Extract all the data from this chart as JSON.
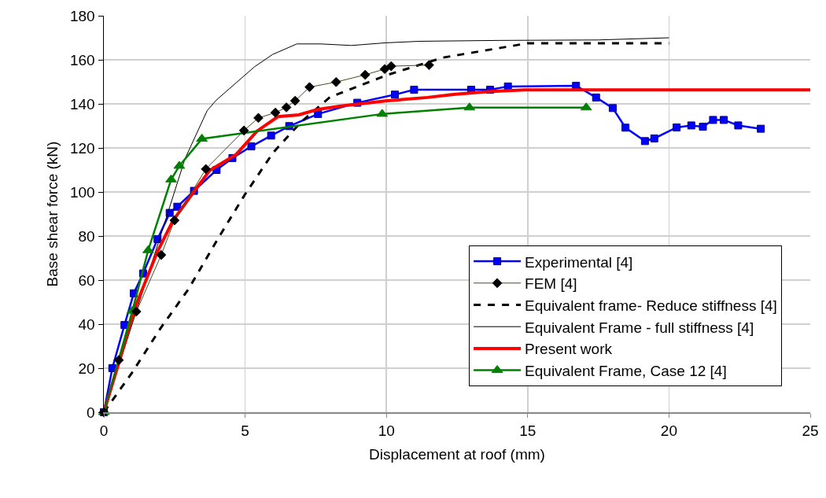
{
  "chart_data": {
    "type": "line",
    "xlabel": "Displacement at roof (mm)",
    "ylabel": "Base shear force (kN)",
    "xlim": [
      0,
      25
    ],
    "xticks": [
      0,
      5,
      10,
      15,
      20,
      25
    ],
    "ylim": [
      0,
      180
    ],
    "yticks": [
      0,
      20,
      40,
      60,
      80,
      100,
      120,
      140,
      160,
      180
    ],
    "grid": true,
    "legend": "bottom right",
    "series": [
      {
        "name": "Experimental [4]",
        "color": "#0000ff",
        "marker": "square",
        "line_style": "solid",
        "x": [
          0,
          0.3,
          0.73,
          1.06,
          1.39,
          1.9,
          2.33,
          2.6,
          3.19,
          3.99,
          4.55,
          5.22,
          5.92,
          6.56,
          7.58,
          8.97,
          10.3,
          10.98,
          13.0,
          13.67,
          14.3,
          16.71,
          17.42,
          18.01,
          18.46,
          19.15,
          19.48,
          20.27,
          20.79,
          21.2,
          21.56,
          21.94,
          22.45,
          23.25
        ],
        "values": [
          0,
          20,
          39.6,
          54,
          63,
          78.6,
          90.5,
          93.3,
          100.5,
          110,
          115.4,
          120.7,
          125.6,
          129.9,
          135.4,
          140.5,
          144.2,
          146.4,
          146.4,
          146.4,
          147.9,
          148.2,
          142.9,
          138.1,
          129.2,
          123.1,
          124.3,
          129.3,
          130.2,
          129.6,
          132.7,
          132.7,
          130.2,
          128.7
        ]
      },
      {
        "name": "FEM [4]",
        "color": "#000000",
        "marker": "diamond",
        "line_style": "solid",
        "x": [
          0,
          0.53,
          1.15,
          2.03,
          2.5,
          3.61,
          4.96,
          5.47,
          6.07,
          6.46,
          6.77,
          7.28,
          8.22,
          9.25,
          9.94,
          10.17,
          11.51
        ],
        "values": [
          0,
          23.7,
          45.7,
          71.4,
          87.1,
          110.4,
          127.9,
          133.6,
          136,
          138.4,
          141.4,
          147.6,
          149.9,
          153.2,
          155.8,
          157.1,
          157.6
        ]
      },
      {
        "name": "Equivalent frame- Reduce stiffness [4]",
        "color": "#000000",
        "marker": "none",
        "line_style": "dashed",
        "x": [
          0,
          1,
          2,
          3,
          4,
          5,
          6,
          7,
          8,
          10,
          12,
          15,
          20
        ],
        "values": [
          0,
          18,
          38,
          56,
          78,
          99,
          118,
          132,
          143,
          153,
          161,
          167.5,
          167.5
        ]
      },
      {
        "name": "Equivalent Frame - full stiffness [4]",
        "color": "#000000",
        "marker": "none",
        "line_style": "solid",
        "x": [
          0,
          1.98,
          2.87,
          3.66,
          3.98,
          5.33,
          5.97,
          6.83,
          7.68,
          8.76,
          9.97,
          11.17,
          14,
          17.5,
          20
        ],
        "values": [
          0,
          79,
          115,
          137,
          141.7,
          156.8,
          162.4,
          167.2,
          167.2,
          166.5,
          167.7,
          168.4,
          168.8,
          169,
          170
        ]
      },
      {
        "name": "Present work",
        "color": "#ff0000",
        "marker": "none",
        "line_style": "solid",
        "x": [
          0,
          0.59,
          1.15,
          1.9,
          2.45,
          3.19,
          3.75,
          4.68,
          5.42,
          6.16,
          6.9,
          7.55,
          8.39,
          9.97,
          11.45,
          12.38,
          13.58,
          14.88,
          25
        ],
        "values": [
          0,
          25,
          49,
          73,
          87,
          100.2,
          109.8,
          117,
          127.6,
          134.2,
          135,
          137.4,
          139,
          141.3,
          142.9,
          144.3,
          145.5,
          146.3,
          146.3
        ]
      },
      {
        "name": "Equivalent Frame, Case 12 [4]",
        "color": "#008000",
        "marker": "triangle",
        "line_style": "solid",
        "x": [
          0,
          1.01,
          1.57,
          2.38,
          2.67,
          3.47,
          9.85,
          12.94,
          17.07
        ],
        "values": [
          0,
          46,
          73.5,
          105.6,
          111.8,
          124.1,
          135.4,
          138.3,
          138.3
        ]
      }
    ]
  }
}
